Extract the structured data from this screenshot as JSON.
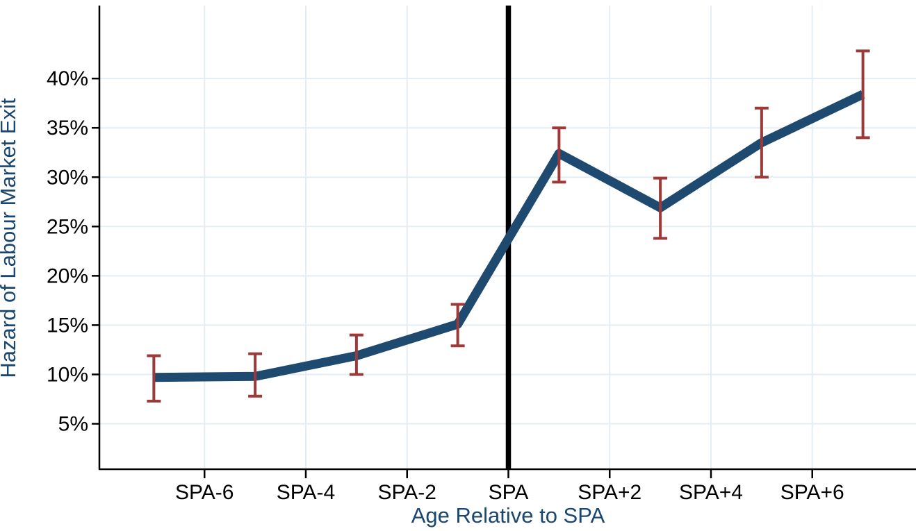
{
  "chart_data": {
    "type": "line",
    "title": "",
    "xlabel": "Age Relative to SPA",
    "ylabel": "Hazard of Labour Market Exit",
    "x_tick_labels": [
      "SPA-6",
      "SPA-4",
      "SPA-2",
      "SPA",
      "SPA+2",
      "SPA+4",
      "SPA+6"
    ],
    "x_tick_positions": [
      -6,
      -4,
      -2,
      0,
      2,
      4,
      6
    ],
    "y_tick_labels": [
      "5%",
      "10%",
      "15%",
      "20%",
      "25%",
      "30%",
      "35%",
      "40%"
    ],
    "y_tick_values": [
      5,
      10,
      15,
      20,
      25,
      30,
      35,
      40
    ],
    "x": [
      -7,
      -5,
      -3,
      -1,
      1,
      3,
      5,
      7
    ],
    "series": [
      {
        "name": "Hazard of labour market exit",
        "values": [
          9.7,
          9.8,
          11.9,
          15.1,
          32.4,
          26.9,
          33.5,
          38.4
        ],
        "ci_low": [
          7.3,
          7.8,
          10.0,
          12.9,
          29.5,
          23.8,
          30.0,
          34.0
        ],
        "ci_high": [
          11.9,
          12.1,
          14.0,
          17.1,
          35.0,
          29.9,
          37.0,
          42.8
        ]
      }
    ],
    "reference_line_x": 0,
    "xlim": [
      -8.1,
      8.05
    ],
    "ylim": [
      0.4,
      47.4
    ],
    "grid": true,
    "legend": "none",
    "colors": {
      "line": "#1E4A70",
      "error_bar": "#9C3A3A",
      "axis_title": "#1A476F",
      "tick_label": "#000000",
      "gridline": "#E4EDF3",
      "reference_line": "#000000",
      "axis_line": "#000000",
      "background": "#FFFFFF"
    }
  }
}
